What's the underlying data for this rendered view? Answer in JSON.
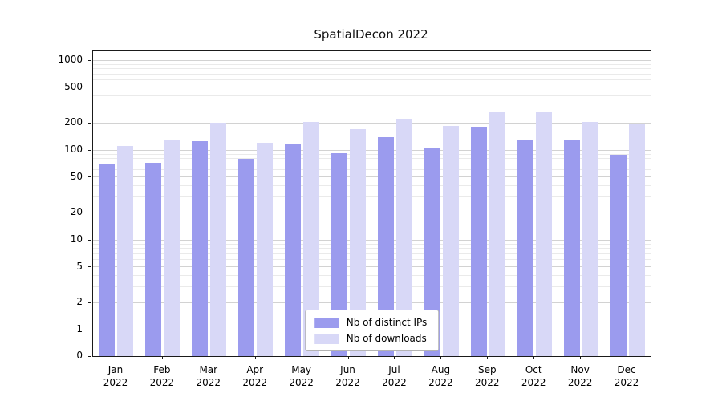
{
  "chart_data": {
    "type": "bar",
    "title": "SpatialDecon 2022",
    "categories": [
      "Jan 2022",
      "Feb 2022",
      "Mar 2022",
      "Apr 2022",
      "May 2022",
      "Jun 2022",
      "Jul 2022",
      "Aug 2022",
      "Sep 2022",
      "Oct 2022",
      "Nov 2022",
      "Dec 2022"
    ],
    "y_scale": "log",
    "y_ticks": [
      0,
      1,
      2,
      5,
      10,
      20,
      50,
      100,
      200,
      500,
      1000
    ],
    "ylim": [
      0,
      1000
    ],
    "grid": "horizontal, major and minor",
    "legend_position": "lower center inside plot",
    "series": [
      {
        "name": "Nb of distinct IPs",
        "color": "#9b9bee",
        "values": [
          70,
          72,
          125,
          80,
          115,
          92,
          140,
          105,
          180,
          128,
          128,
          88
        ]
      },
      {
        "name": "Nb of downloads",
        "color": "#d8d8f7",
        "values": [
          110,
          130,
          200,
          120,
          205,
          170,
          220,
          185,
          265,
          265,
          205,
          195
        ]
      }
    ]
  }
}
